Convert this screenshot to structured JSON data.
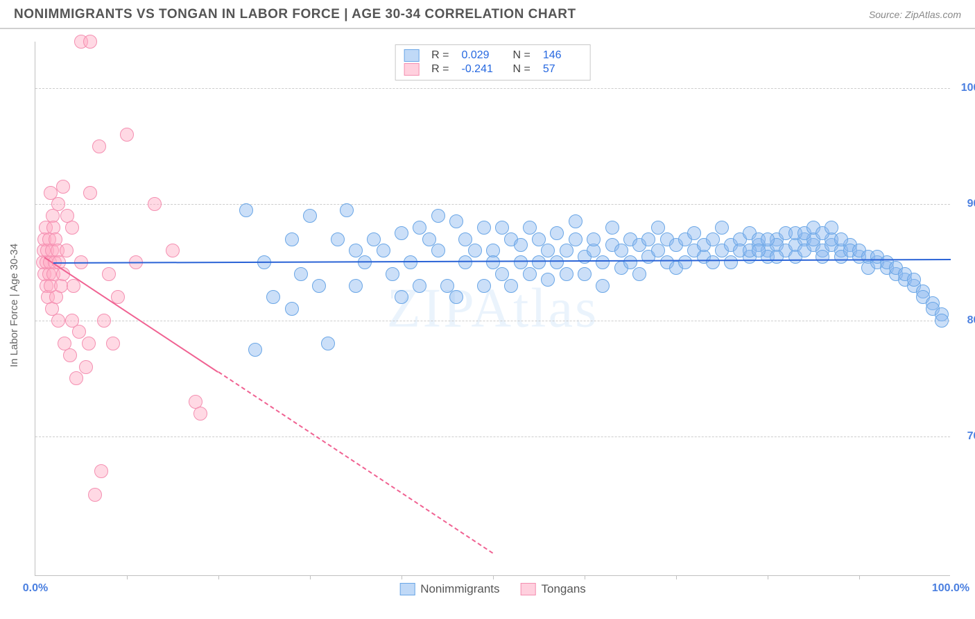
{
  "header": {
    "title": "NONIMMIGRANTS VS TONGAN IN LABOR FORCE | AGE 30-34 CORRELATION CHART",
    "source": "Source: ZipAtlas.com"
  },
  "ylabel": "In Labor Force | Age 30-34",
  "watermark": "ZIPAtlas",
  "chart": {
    "xlim": [
      0,
      100
    ],
    "ylim": [
      58,
      104
    ],
    "yticks": [
      {
        "v": 70,
        "label": "70.0%"
      },
      {
        "v": 80,
        "label": "80.0%"
      },
      {
        "v": 90,
        "label": "90.0%"
      },
      {
        "v": 100,
        "label": "100.0%"
      }
    ],
    "xtick_marks": [
      10,
      20,
      30,
      40,
      50,
      60,
      70,
      80,
      90
    ],
    "xtick_labels": [
      {
        "v": 0,
        "label": "0.0%"
      },
      {
        "v": 100,
        "label": "100.0%"
      }
    ],
    "label_color": "#4a7fe0",
    "background_color": "#ffffff",
    "grid_color": "#cccccc"
  },
  "series": {
    "blue": {
      "name": "Nonimmigrants",
      "R_label": "R =",
      "R": "0.029",
      "N_label": "N =",
      "N": "146",
      "fill": "rgba(140,185,240,0.45)",
      "stroke": "#6aa6e6",
      "marker_radius": 10,
      "trend": {
        "x1": 2,
        "y1": 85.0,
        "x2": 100,
        "y2": 85.3,
        "color": "#2a63d6",
        "solid_until_x": 100
      },
      "points": [
        [
          23,
          89.5
        ],
        [
          24,
          77.5
        ],
        [
          25,
          85
        ],
        [
          26,
          82
        ],
        [
          28,
          87
        ],
        [
          28,
          81
        ],
        [
          29,
          84
        ],
        [
          30,
          89
        ],
        [
          31,
          83
        ],
        [
          32,
          78
        ],
        [
          33,
          87
        ],
        [
          34,
          89.5
        ],
        [
          35,
          83
        ],
        [
          35,
          86
        ],
        [
          36,
          85
        ],
        [
          37,
          87
        ],
        [
          38,
          86
        ],
        [
          39,
          84
        ],
        [
          40,
          87.5
        ],
        [
          40,
          82
        ],
        [
          41,
          85
        ],
        [
          42,
          88
        ],
        [
          42,
          83
        ],
        [
          43,
          87
        ],
        [
          44,
          86
        ],
        [
          44,
          89
        ],
        [
          45,
          83
        ],
        [
          46,
          88.5
        ],
        [
          46,
          82
        ],
        [
          47,
          85
        ],
        [
          47,
          87
        ],
        [
          48,
          86
        ],
        [
          49,
          83
        ],
        [
          49,
          88
        ],
        [
          50,
          86
        ],
        [
          50,
          85
        ],
        [
          51,
          84
        ],
        [
          51,
          88
        ],
        [
          52,
          87
        ],
        [
          52,
          83
        ],
        [
          53,
          85
        ],
        [
          53,
          86.5
        ],
        [
          54,
          88
        ],
        [
          54,
          84
        ],
        [
          55,
          87
        ],
        [
          55,
          85
        ],
        [
          56,
          86
        ],
        [
          56,
          83.5
        ],
        [
          57,
          87.5
        ],
        [
          57,
          85
        ],
        [
          58,
          86
        ],
        [
          58,
          84
        ],
        [
          59,
          87
        ],
        [
          59,
          88.5
        ],
        [
          60,
          85.5
        ],
        [
          60,
          84
        ],
        [
          61,
          86
        ],
        [
          61,
          87
        ],
        [
          62,
          85
        ],
        [
          62,
          83
        ],
        [
          63,
          86.5
        ],
        [
          63,
          88
        ],
        [
          64,
          84.5
        ],
        [
          64,
          86
        ],
        [
          65,
          87
        ],
        [
          65,
          85
        ],
        [
          66,
          86.5
        ],
        [
          66,
          84
        ],
        [
          67,
          87
        ],
        [
          67,
          85.5
        ],
        [
          68,
          86
        ],
        [
          68,
          88
        ],
        [
          69,
          85
        ],
        [
          69,
          87
        ],
        [
          70,
          86.5
        ],
        [
          70,
          84.5
        ],
        [
          71,
          87
        ],
        [
          71,
          85
        ],
        [
          72,
          86
        ],
        [
          72,
          87.5
        ],
        [
          73,
          85.5
        ],
        [
          73,
          86.5
        ],
        [
          74,
          87
        ],
        [
          74,
          85
        ],
        [
          75,
          86
        ],
        [
          75,
          88
        ],
        [
          76,
          86.5
        ],
        [
          76,
          85
        ],
        [
          77,
          87
        ],
        [
          77,
          86
        ],
        [
          78,
          87.5
        ],
        [
          78,
          85.5
        ],
        [
          79,
          86.5
        ],
        [
          79,
          87
        ],
        [
          80,
          86
        ],
        [
          80,
          85.5
        ],
        [
          81,
          87
        ],
        [
          81,
          86.5
        ],
        [
          82,
          86
        ],
        [
          82,
          87.5
        ],
        [
          83,
          86.5
        ],
        [
          83,
          85.5
        ],
        [
          84,
          87
        ],
        [
          84,
          86
        ],
        [
          85,
          86.5
        ],
        [
          85,
          87
        ],
        [
          86,
          86
        ],
        [
          86,
          85.5
        ],
        [
          87,
          86.5
        ],
        [
          87,
          87
        ],
        [
          88,
          86
        ],
        [
          88,
          85.5
        ],
        [
          89,
          86.5
        ],
        [
          89,
          86
        ],
        [
          90,
          85.5
        ],
        [
          90,
          86
        ],
        [
          91,
          85.5
        ],
        [
          91,
          84.5
        ],
        [
          92,
          85
        ],
        [
          92,
          85.5
        ],
        [
          93,
          84.5
        ],
        [
          93,
          85
        ],
        [
          94,
          84
        ],
        [
          94,
          84.5
        ],
        [
          95,
          83.5
        ],
        [
          95,
          84
        ],
        [
          96,
          83
        ],
        [
          96,
          83.5
        ],
        [
          97,
          82.5
        ],
        [
          97,
          82
        ],
        [
          98,
          81.5
        ],
        [
          98,
          81
        ],
        [
          99,
          80.5
        ],
        [
          99,
          80
        ],
        [
          83,
          87.5
        ],
        [
          84,
          87.5
        ],
        [
          85,
          88
        ],
        [
          86,
          87.5
        ],
        [
          87,
          88
        ],
        [
          88,
          87
        ],
        [
          78,
          86
        ],
        [
          79,
          86
        ],
        [
          80,
          87
        ],
        [
          81,
          85.5
        ]
      ]
    },
    "pink": {
      "name": "Tongans",
      "R_label": "R =",
      "R": "-0.241",
      "N_label": "N =",
      "N": "57",
      "fill": "rgba(255,170,195,0.45)",
      "stroke": "#f48fb1",
      "marker_radius": 10,
      "trend": {
        "x1": 1,
        "y1": 85.5,
        "x2": 50,
        "y2": 60,
        "color": "#f06292",
        "solid_until_x": 20
      },
      "points": [
        [
          0.8,
          85
        ],
        [
          0.9,
          86
        ],
        [
          1,
          84
        ],
        [
          1,
          87
        ],
        [
          1.1,
          88
        ],
        [
          1.2,
          83
        ],
        [
          1.2,
          85
        ],
        [
          1.3,
          86
        ],
        [
          1.4,
          82
        ],
        [
          1.5,
          84
        ],
        [
          1.5,
          87
        ],
        [
          1.6,
          85
        ],
        [
          1.7,
          91
        ],
        [
          1.7,
          83
        ],
        [
          1.8,
          86
        ],
        [
          1.8,
          81
        ],
        [
          1.9,
          89
        ],
        [
          2,
          88
        ],
        [
          2,
          84
        ],
        [
          2.1,
          85
        ],
        [
          2.2,
          87
        ],
        [
          2.3,
          82
        ],
        [
          2.4,
          86
        ],
        [
          2.5,
          90
        ],
        [
          2.5,
          80
        ],
        [
          2.6,
          85
        ],
        [
          2.8,
          83
        ],
        [
          3,
          91.5
        ],
        [
          3,
          84
        ],
        [
          3.2,
          78
        ],
        [
          3.4,
          86
        ],
        [
          3.5,
          89
        ],
        [
          3.8,
          77
        ],
        [
          4,
          88
        ],
        [
          4,
          80
        ],
        [
          4.2,
          83
        ],
        [
          4.5,
          75
        ],
        [
          4.8,
          79
        ],
        [
          5,
          85
        ],
        [
          5,
          104
        ],
        [
          5.5,
          76
        ],
        [
          5.8,
          78
        ],
        [
          6,
          104
        ],
        [
          6,
          91
        ],
        [
          6.5,
          65
        ],
        [
          7,
          95
        ],
        [
          7.2,
          67
        ],
        [
          7.5,
          80
        ],
        [
          8,
          84
        ],
        [
          8.5,
          78
        ],
        [
          9,
          82
        ],
        [
          10,
          96
        ],
        [
          11,
          85
        ],
        [
          13,
          90
        ],
        [
          15,
          86
        ],
        [
          17.5,
          73
        ],
        [
          18,
          72
        ]
      ]
    }
  }
}
